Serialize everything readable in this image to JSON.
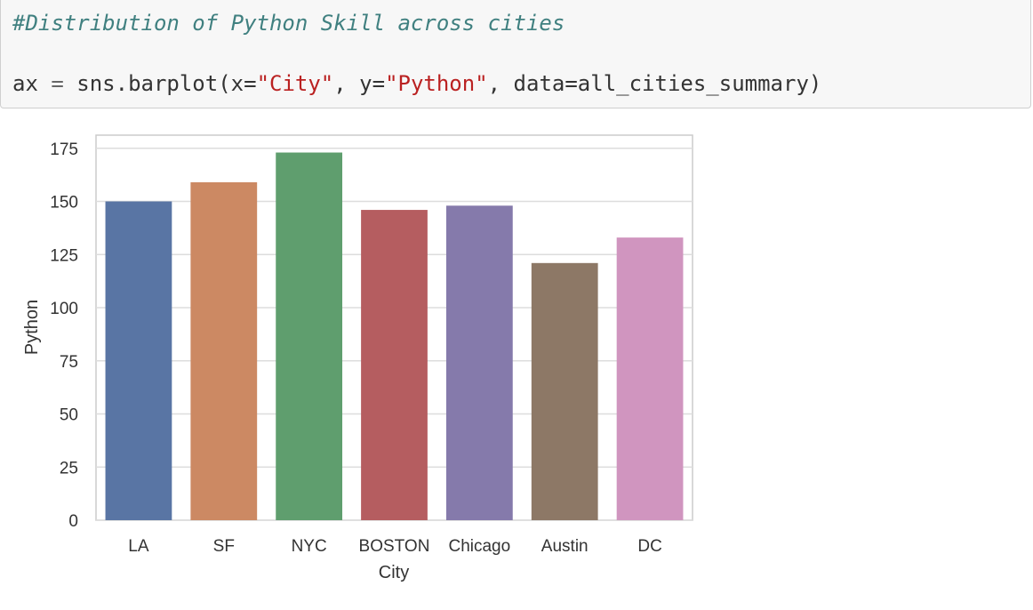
{
  "code_cell": {
    "comment": "#Distribution of Python Skill across cities",
    "code": {
      "var": "ax",
      "op": " = ",
      "call": "sns.barplot(x=",
      "x_str": "\"City\"",
      "sep1": ", y=",
      "y_str": "\"Python\"",
      "rest": ", data=all_cities_summary)"
    }
  },
  "chart_data": {
    "type": "bar",
    "categories": [
      "LA",
      "SF",
      "NYC",
      "BOSTON",
      "Chicago",
      "Austin",
      "DC"
    ],
    "values": [
      150,
      159,
      173,
      146,
      148,
      121,
      133
    ],
    "colors": [
      "#5975a4",
      "#cc8963",
      "#5f9e6e",
      "#b55d60",
      "#857aab",
      "#8d7866",
      "#d095bf"
    ],
    "xlabel": "City",
    "ylabel": "Python",
    "ylim": [
      0,
      180
    ],
    "yticks": [
      0,
      25,
      50,
      75,
      100,
      125,
      150,
      175
    ],
    "grid": true
  }
}
